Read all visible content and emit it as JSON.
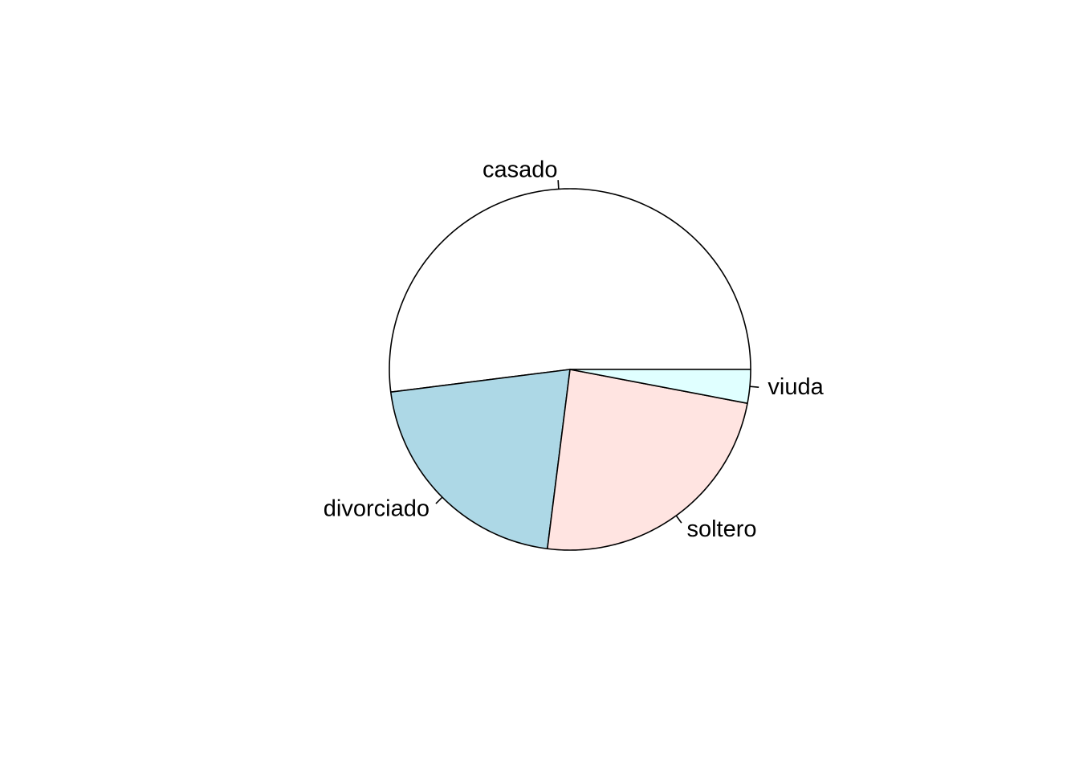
{
  "chart_data": {
    "type": "pie",
    "title": "",
    "start_angle_deg": 0,
    "direction": "counterclockwise",
    "slices": [
      {
        "label": "casado",
        "value": 52,
        "color": "#FFFFFF"
      },
      {
        "label": "divorciado",
        "value": 21,
        "color": "#ADD8E6"
      },
      {
        "label": "soltero",
        "value": 24,
        "color": "#FFE4E1"
      },
      {
        "label": "viuda",
        "value": 3,
        "color": "#E0FFFF"
      }
    ]
  }
}
